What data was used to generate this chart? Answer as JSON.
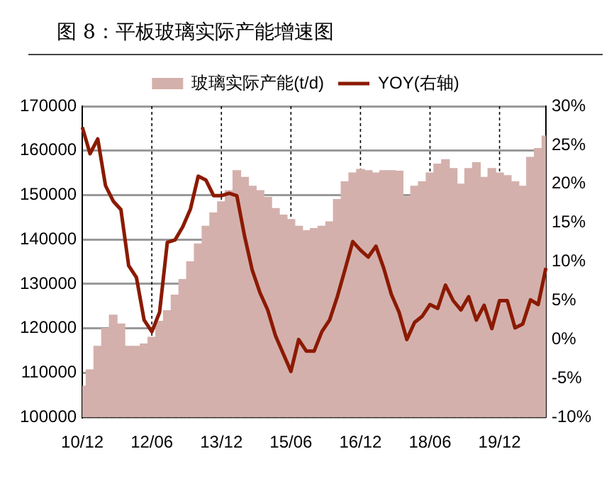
{
  "chart_data": {
    "type": "bar",
    "title": "图 8：平板玻璃实际产能增速图",
    "categories": [
      "10/12",
      null,
      null,
      null,
      null,
      null,
      null,
      null,
      null,
      "12/06",
      null,
      null,
      null,
      null,
      null,
      null,
      null,
      null,
      "13/12",
      null,
      null,
      null,
      null,
      null,
      null,
      null,
      null,
      "15/06",
      null,
      null,
      null,
      null,
      null,
      null,
      null,
      null,
      "16/12",
      null,
      null,
      null,
      null,
      null,
      null,
      null,
      null,
      "18/06",
      null,
      null,
      null,
      null,
      null,
      null,
      null,
      null,
      "19/12",
      null,
      null,
      null,
      null,
      null,
      null
    ],
    "series": [
      {
        "name": "玻璃实际产能(t/d)",
        "color": "#d4b0ac",
        "values": [
          107000,
          110700,
          116000,
          120000,
          123000,
          121000,
          116000,
          116000,
          116500,
          118000,
          121600,
          124000,
          127500,
          131000,
          135000,
          139000,
          143000,
          146000,
          148500,
          151000,
          155500,
          154000,
          152000,
          151000,
          149500,
          147000,
          145500,
          144500,
          143000,
          142000,
          142500,
          143000,
          144000,
          149000,
          153000,
          155000,
          155800,
          155500,
          155000,
          155500,
          155500,
          155400,
          149600,
          152000,
          153000,
          155000,
          157000,
          158000,
          156000,
          152500,
          156000,
          157300,
          154000,
          156000,
          155000,
          154400,
          153000,
          152000,
          158500,
          160500,
          163300
        ]
      },
      {
        "name": "YOY(右轴)",
        "type": "line",
        "axis": "y2",
        "color": "#8b1a00",
        "values": [
          27.3,
          23.9,
          25.8,
          19.8,
          17.8,
          16.7,
          9.5,
          8,
          2.5,
          1.0,
          3.5,
          12.5,
          12.8,
          14.5,
          16.8,
          21,
          20.5,
          18.5,
          18.5,
          18.8,
          18.5,
          13.3,
          8.9,
          6,
          3.8,
          0.5,
          -1.8,
          -4.1,
          0.0,
          -1.5,
          -1.5,
          1.0,
          2.5,
          5.5,
          9,
          12.6,
          11.5,
          10.6,
          12.0,
          9.2,
          5.8,
          3.5,
          0.0,
          2.2,
          3,
          4.5,
          4,
          7,
          5,
          3.8,
          5.5,
          2.5,
          4.4,
          1.4,
          5,
          5,
          1.5,
          2,
          5.1,
          4.5,
          9.2
        ]
      }
    ],
    "ylim": [
      100000,
      170000
    ],
    "yticks": [
      100000,
      110000,
      120000,
      130000,
      140000,
      150000,
      160000,
      170000
    ],
    "y2lim": [
      -10,
      30
    ],
    "y2ticks": [
      {
        "value": -10,
        "label": "-10%"
      },
      {
        "value": -5,
        "label": "-5%"
      },
      {
        "value": 0,
        "label": "0%"
      },
      {
        "value": 5,
        "label": "5%"
      },
      {
        "value": 10,
        "label": "10%"
      },
      {
        "value": 15,
        "label": "15%"
      },
      {
        "value": 20,
        "label": "20%"
      },
      {
        "value": 25,
        "label": "25%"
      },
      {
        "value": 30,
        "label": "30%"
      }
    ],
    "grid": true,
    "legend": "top",
    "marker": "none",
    "line_style": "solid"
  }
}
